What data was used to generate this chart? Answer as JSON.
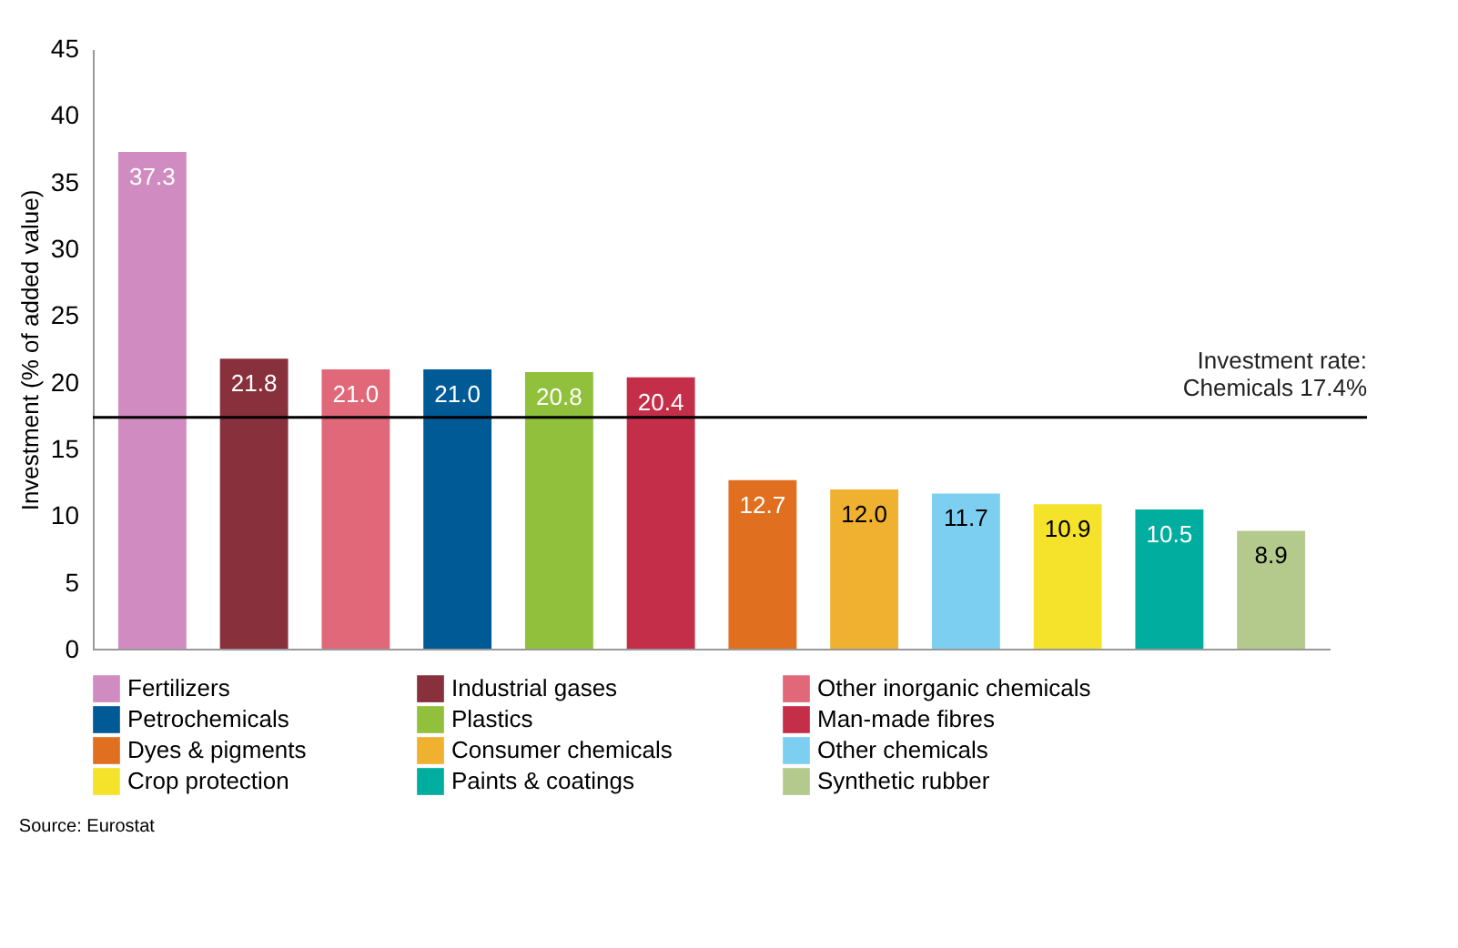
{
  "chart_data": {
    "type": "bar",
    "ylabel": "Investment (% of added value)",
    "categories": [
      null,
      null,
      null,
      null,
      null,
      null,
      null,
      null,
      null,
      null,
      null,
      null
    ],
    "series": [
      {
        "name": "Fertilizers",
        "color": "#d08cc0",
        "values": [
          37.3,
          null,
          null,
          null,
          null,
          null,
          null,
          null,
          null,
          null,
          null,
          null
        ],
        "value_labels": [
          "37.3",
          null,
          null,
          null,
          null,
          null,
          null,
          null,
          null,
          null,
          null,
          null
        ]
      },
      {
        "name": "Industrial gases",
        "color": "#88303c",
        "values": [
          null,
          21.8,
          null,
          null,
          null,
          null,
          null,
          null,
          null,
          null,
          null,
          null
        ],
        "value_labels": [
          null,
          "21.8",
          null,
          null,
          null,
          null,
          null,
          null,
          null,
          null,
          null,
          null
        ]
      },
      {
        "name": "Other inorganic chemicals",
        "color": "#e06878",
        "values": [
          null,
          null,
          21.0,
          null,
          null,
          null,
          null,
          null,
          null,
          null,
          null,
          null
        ],
        "value_labels": [
          null,
          null,
          "21.0",
          null,
          null,
          null,
          null,
          null,
          null,
          null,
          null,
          null
        ]
      },
      {
        "name": "Petrochemicals",
        "color": "#005a96",
        "values": [
          null,
          null,
          null,
          21.0,
          null,
          null,
          null,
          null,
          null,
          null,
          null,
          null
        ],
        "value_labels": [
          null,
          null,
          null,
          "21.0",
          null,
          null,
          null,
          null,
          null,
          null,
          null,
          null
        ]
      },
      {
        "name": "Plastics",
        "color": "#90c03c",
        "values": [
          null,
          null,
          null,
          null,
          20.8,
          null,
          null,
          null,
          null,
          null,
          null,
          null
        ],
        "value_labels": [
          null,
          null,
          null,
          null,
          "20.8",
          null,
          null,
          null,
          null,
          null,
          null,
          null
        ]
      },
      {
        "name": "Man-made fibres",
        "color": "#c42e48",
        "values": [
          null,
          null,
          null,
          null,
          null,
          20.4,
          null,
          null,
          null,
          null,
          null,
          null
        ],
        "value_labels": [
          null,
          null,
          null,
          null,
          null,
          "20.4",
          null,
          null,
          null,
          null,
          null,
          null
        ]
      },
      {
        "name": "Dyes & pigments",
        "color": "#e07020",
        "values": [
          null,
          null,
          null,
          null,
          null,
          null,
          12.7,
          null,
          null,
          null,
          null,
          null
        ],
        "value_labels": [
          null,
          null,
          null,
          null,
          null,
          null,
          "12.7",
          null,
          null,
          null,
          null,
          null
        ]
      },
      {
        "name": "Consumer chemicals",
        "color": "#f0b030",
        "values": [
          null,
          null,
          null,
          null,
          null,
          null,
          null,
          12.0,
          null,
          null,
          null,
          null
        ],
        "value_labels": [
          null,
          null,
          null,
          null,
          null,
          null,
          null,
          "12.0",
          null,
          null,
          null,
          null
        ]
      },
      {
        "name": "Other chemicals",
        "color": "#7ccff0",
        "values": [
          null,
          null,
          null,
          null,
          null,
          null,
          null,
          null,
          11.7,
          null,
          null,
          null
        ],
        "value_labels": [
          null,
          null,
          null,
          null,
          null,
          null,
          null,
          null,
          "11.7",
          null,
          null,
          null
        ]
      },
      {
        "name": "Crop protection",
        "color": "#f5e22a",
        "values": [
          null,
          null,
          null,
          null,
          null,
          null,
          null,
          null,
          null,
          10.9,
          null,
          null
        ],
        "value_labels": [
          null,
          null,
          null,
          null,
          null,
          null,
          null,
          null,
          null,
          "10.9",
          null,
          null
        ]
      },
      {
        "name": "Paints & coatings",
        "color": "#00ad9f",
        "values": [
          null,
          null,
          null,
          null,
          null,
          null,
          null,
          null,
          null,
          null,
          10.5,
          null
        ],
        "value_labels": [
          null,
          null,
          null,
          null,
          null,
          null,
          null,
          null,
          null,
          null,
          "10.5",
          null
        ]
      },
      {
        "name": "Synthetic rubber",
        "color": "#b4c98c",
        "values": [
          null,
          null,
          null,
          null,
          null,
          null,
          null,
          null,
          null,
          null,
          null,
          8.9
        ],
        "value_labels": [
          null,
          null,
          null,
          null,
          null,
          null,
          null,
          null,
          null,
          null,
          null,
          "8.9"
        ]
      }
    ],
    "ylim": [
      0,
      45
    ],
    "yticks": [
      0,
      5,
      10,
      15,
      20,
      25,
      30,
      35,
      40,
      45
    ],
    "ref_lines": [
      {
        "axis": "y",
        "value": 17.4,
        "label": "Investment rate:\nChemicals 17.4%",
        "color": "#000000"
      }
    ],
    "tick_labels": "y",
    "grid": false,
    "legend": "bottom",
    "annotations": [
      "Source: Eurostat"
    ]
  }
}
